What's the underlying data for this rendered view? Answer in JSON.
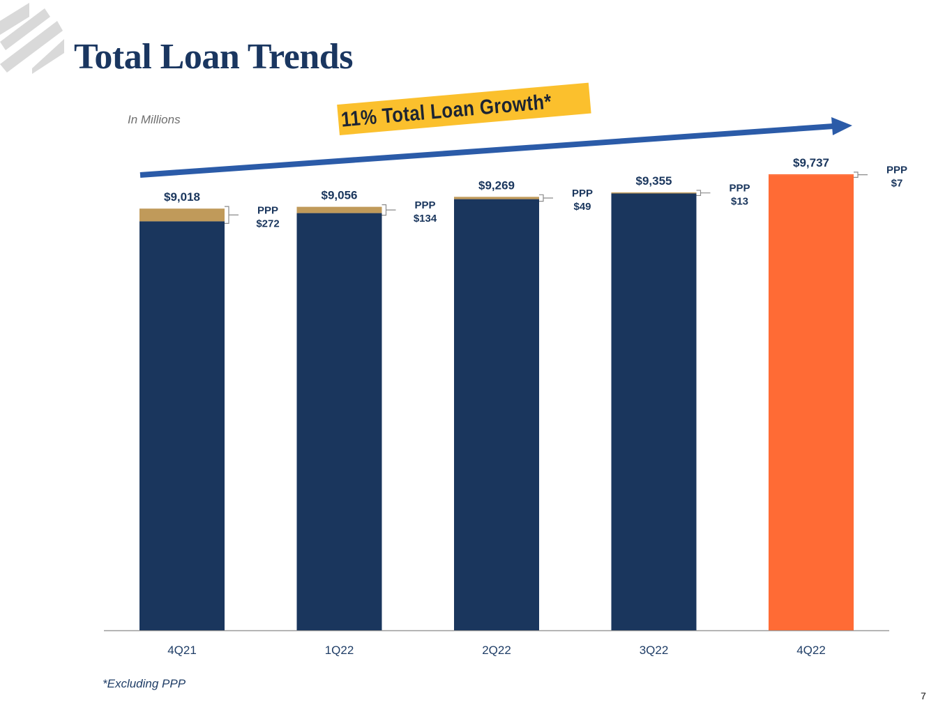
{
  "title": "Total Loan Trends",
  "subtitle": "In Millions",
  "footnote": "*Excluding PPP",
  "page_number": "7",
  "banner": "11% Total Loan Growth*",
  "colors": {
    "title": "#1a3660",
    "core_bar": "#1a365d",
    "highlight_bar": "#ff6b35",
    "ppp_segment": "#c09a5a",
    "arrow": "#2b5ba8",
    "banner_bg": "#fbc02d",
    "logo_stripes": "#d9d9d9"
  },
  "chart_data": {
    "type": "bar",
    "stacked": true,
    "categories": [
      "4Q21",
      "1Q22",
      "2Q22",
      "3Q22",
      "4Q22"
    ],
    "totals": [
      9018,
      9056,
      9269,
      9355,
      9737
    ],
    "total_labels": [
      "$9,018",
      "$9,056",
      "$9,269",
      "$9,355",
      "$9,737"
    ],
    "series": [
      {
        "name": "",
        "values": [
          8746,
          8922,
          9220,
          9342,
          9730
        ]
      },
      {
        "name": "PPP",
        "values": [
          272,
          134,
          49,
          13,
          7
        ]
      }
    ],
    "ppp_labels": [
      {
        "label": "PPP",
        "value": "$272"
      },
      {
        "label": "PPP",
        "value": "$134"
      },
      {
        "label": "PPP",
        "value": "$49"
      },
      {
        "label": "PPP",
        "value": "$13"
      },
      {
        "label": "PPP",
        "value": "$7"
      }
    ],
    "highlight_index": 4,
    "ylim": [
      0,
      9900
    ],
    "grid": false,
    "legend": false
  }
}
